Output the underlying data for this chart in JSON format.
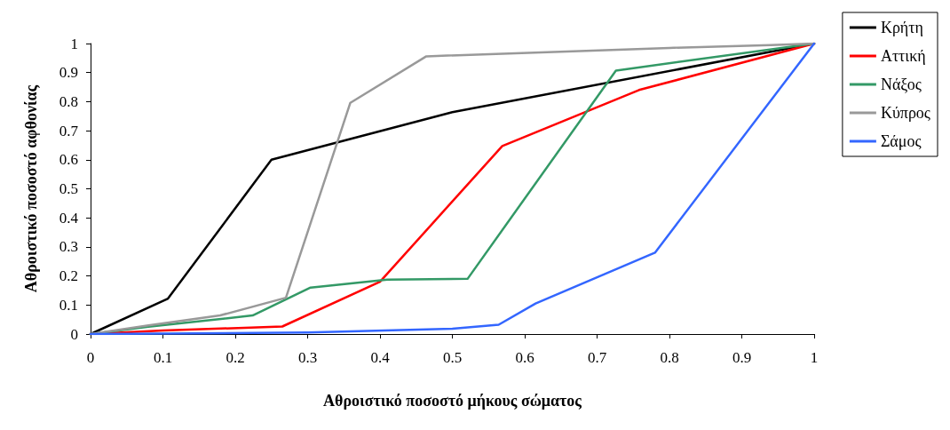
{
  "chart_data": {
    "type": "line",
    "xlabel": "Αθροιστικό ποσοστό μήκους σώματος",
    "ylabel": "Αθροιστικό ποσοστό αφθονίας",
    "xlim": [
      0,
      1
    ],
    "ylim": [
      0,
      1
    ],
    "xticks": [
      0,
      0.1,
      0.2,
      0.3,
      0.4,
      0.5,
      0.6,
      0.7,
      0.8,
      0.9,
      1
    ],
    "yticks": [
      0,
      0.1,
      0.2,
      0.3,
      0.4,
      0.5,
      0.6,
      0.7,
      0.8,
      0.9,
      1
    ],
    "grid": false,
    "legend": "top right",
    "marker": "none",
    "line_style": "solid",
    "series": [
      {
        "name": "Κρήτη",
        "color": "#000000",
        "x": [
          0,
          0.107,
          0.25,
          0.5,
          1
        ],
        "values": [
          0,
          0.122,
          0.6,
          0.764,
          1
        ]
      },
      {
        "name": "Αττική",
        "color": "#ff0000",
        "x": [
          0,
          0.1,
          0.265,
          0.4,
          0.569,
          0.758,
          1
        ],
        "values": [
          0,
          0.012,
          0.026,
          0.18,
          0.647,
          0.84,
          1
        ]
      },
      {
        "name": "Νάξος",
        "color": "#339966",
        "x": [
          0,
          0.08,
          0.224,
          0.304,
          0.41,
          0.521,
          0.726,
          1
        ],
        "values": [
          0,
          0.025,
          0.064,
          0.16,
          0.187,
          0.19,
          0.907,
          1
        ]
      },
      {
        "name": "Κύπρος",
        "color": "#999999",
        "x": [
          0,
          0.08,
          0.179,
          0.27,
          0.359,
          0.464,
          0.8,
          0.94,
          1
        ],
        "values": [
          0,
          0.03,
          0.064,
          0.125,
          0.796,
          0.956,
          0.985,
          0.995,
          1
        ]
      },
      {
        "name": "Σάμος",
        "color": "#3366ff",
        "x": [
          0,
          0.3,
          0.5,
          0.564,
          0.615,
          0.78,
          1
        ],
        "values": [
          0,
          0.005,
          0.018,
          0.032,
          0.105,
          0.28,
          1
        ]
      }
    ]
  }
}
